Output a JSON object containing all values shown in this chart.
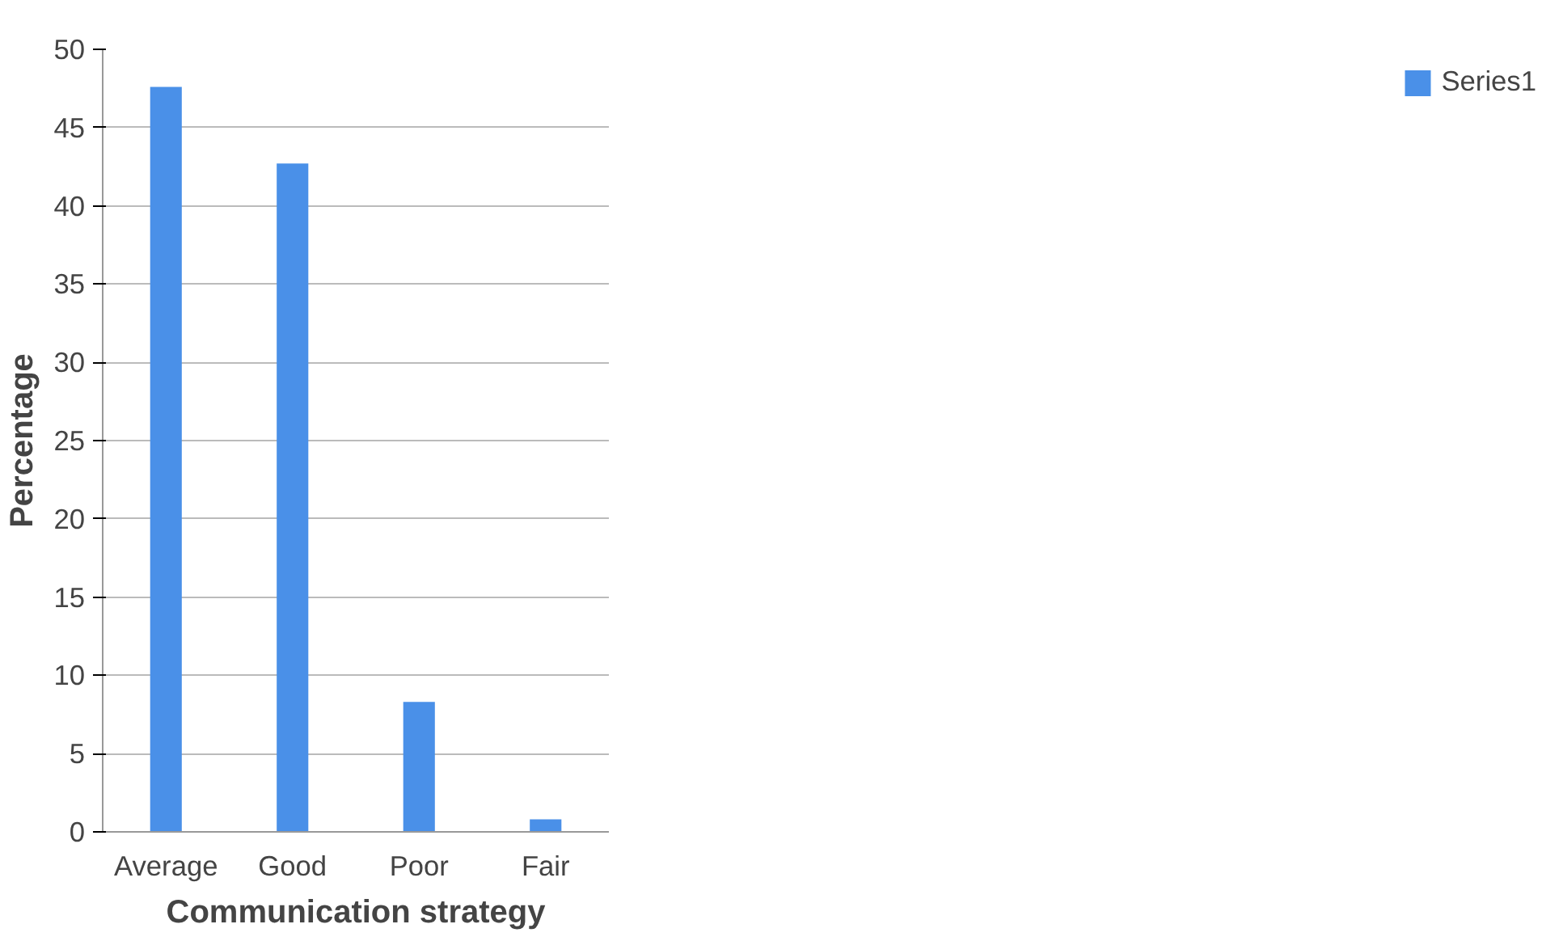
{
  "chart_data": {
    "type": "bar",
    "xlabel": "Communication strategy",
    "ylabel": "Percentage",
    "categories": [
      "Average",
      "Good",
      "Poor",
      "Fair"
    ],
    "series": [
      {
        "name": "Series1",
        "color": "#4a90e8",
        "values": [
          47.6,
          42.7,
          8.3,
          0.8
        ]
      }
    ],
    "ylim": [
      0,
      50
    ],
    "yticks": [
      0,
      5,
      10,
      15,
      20,
      25,
      30,
      35,
      40,
      45,
      50
    ],
    "grid": "y",
    "legend": "right"
  }
}
